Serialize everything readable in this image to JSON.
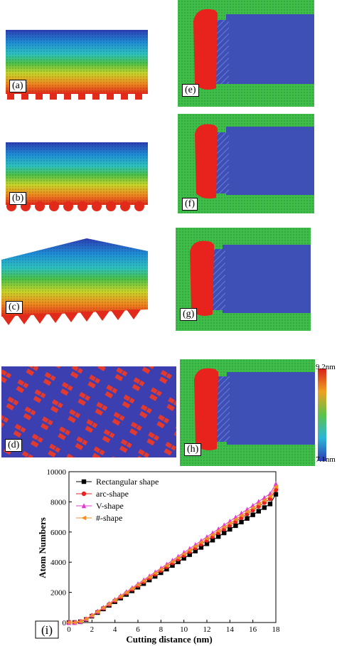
{
  "panels": {
    "a": "(a)",
    "b": "(b)",
    "c": "(c)",
    "d": "(d)",
    "e": "(e)",
    "f": "(f)",
    "g": "(g)",
    "h": "(h)"
  },
  "colorbar": {
    "max_label": "9.2nm",
    "min_label": "7.1nm"
  },
  "colors": {
    "surface_green": "#3fbf4a",
    "chip_red": "#e8221c",
    "tool_blue": "#3e4fb6",
    "pattern_red": "#e23a2e",
    "pattern_blue": "#3b3fb0"
  },
  "chart_data": {
    "type": "line",
    "panel_label": "(i)",
    "xlabel": "Cutting distance (nm)",
    "ylabel": "Atom Numbers",
    "xlim": [
      0,
      18
    ],
    "ylim": [
      0,
      10000
    ],
    "xticks": [
      0,
      2,
      4,
      6,
      8,
      10,
      12,
      14,
      16,
      18
    ],
    "yticks": [
      0,
      2000,
      4000,
      6000,
      8000,
      10000
    ],
    "legend_position": "top-left",
    "x": [
      0,
      0.5,
      1,
      1.5,
      2,
      2.5,
      3,
      3.5,
      4,
      4.5,
      5,
      5.5,
      6,
      6.5,
      7,
      7.5,
      8,
      8.5,
      9,
      9.5,
      10,
      10.5,
      11,
      11.5,
      12,
      12.5,
      13,
      13.5,
      14,
      14.5,
      15,
      15.5,
      16,
      16.5,
      17,
      17.5,
      18
    ],
    "series": [
      {
        "name": "Rectangular shape",
        "marker": "square",
        "color": "#000000",
        "values": [
          0,
          0,
          50,
          200,
          420,
          660,
          900,
          1140,
          1380,
          1620,
          1860,
          2100,
          2340,
          2580,
          2820,
          3060,
          3300,
          3540,
          3780,
          4020,
          4260,
          4500,
          4740,
          4980,
          5220,
          5460,
          5700,
          5940,
          6180,
          6420,
          6660,
          6900,
          7140,
          7380,
          7620,
          7860,
          8500
        ]
      },
      {
        "name": "arc-shape",
        "marker": "circle",
        "color": "#e8221c",
        "values": [
          0,
          0,
          60,
          220,
          450,
          700,
          950,
          1200,
          1450,
          1700,
          1950,
          2200,
          2450,
          2700,
          2950,
          3200,
          3450,
          3700,
          3950,
          4200,
          4450,
          4700,
          4950,
          5200,
          5450,
          5700,
          5950,
          6200,
          6450,
          6700,
          6950,
          7200,
          7450,
          7700,
          7950,
          8200,
          8800
        ]
      },
      {
        "name": "V-shape",
        "marker": "triangle-up",
        "color": "#e23ad0",
        "values": [
          0,
          0,
          70,
          240,
          480,
          740,
          1000,
          1260,
          1520,
          1780,
          2040,
          2300,
          2560,
          2820,
          3080,
          3340,
          3600,
          3860,
          4120,
          4380,
          4640,
          4900,
          5160,
          5420,
          5680,
          5940,
          6200,
          6460,
          6720,
          6980,
          7240,
          7500,
          7760,
          8020,
          8280,
          8540,
          9200
        ]
      },
      {
        "name": "#-shape",
        "marker": "triangle-left",
        "color": "#f0902a",
        "values": [
          0,
          0,
          65,
          230,
          465,
          720,
          975,
          1230,
          1485,
          1740,
          1995,
          2250,
          2505,
          2760,
          3015,
          3270,
          3525,
          3780,
          4035,
          4290,
          4545,
          4800,
          5055,
          5310,
          5565,
          5820,
          6075,
          6330,
          6585,
          6840,
          7095,
          7350,
          7605,
          7860,
          8115,
          8370,
          9000
        ]
      }
    ]
  }
}
